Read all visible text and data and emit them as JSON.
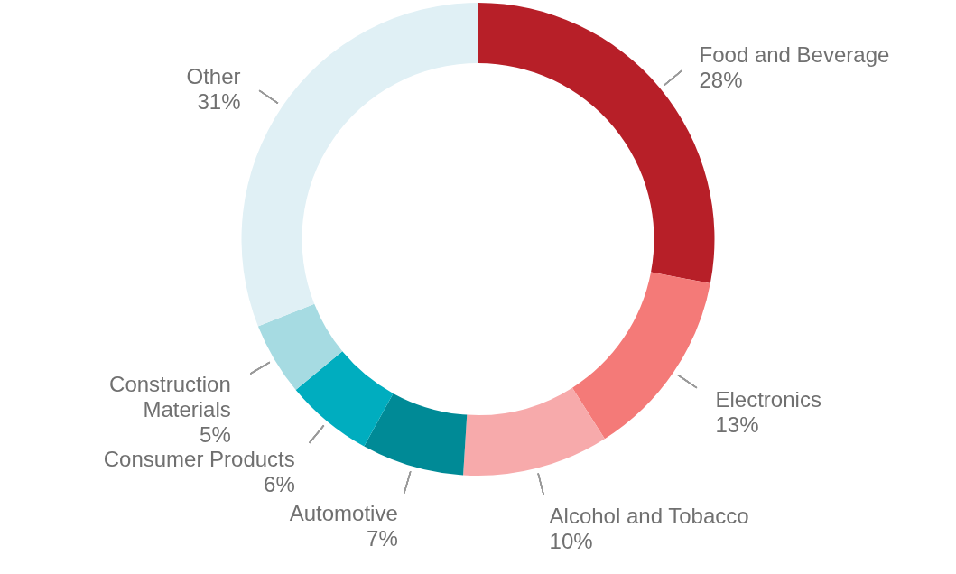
{
  "chart_data": {
    "type": "donut",
    "categories": [
      "Food and Beverage",
      "Electronics",
      "Alcohol and Tobacco",
      "Automotive",
      "Consumer Products",
      "Construction Materials",
      "Other"
    ],
    "values": [
      28,
      13,
      10,
      7,
      6,
      5,
      31
    ],
    "value_labels": [
      "28%",
      "13%",
      "10%",
      "7%",
      "6%",
      "5%",
      "31%"
    ],
    "colors": [
      "#b71f28",
      "#f47a78",
      "#f7aaab",
      "#008a96",
      "#00adbf",
      "#a6dbe2",
      "#e0f0f5"
    ]
  }
}
